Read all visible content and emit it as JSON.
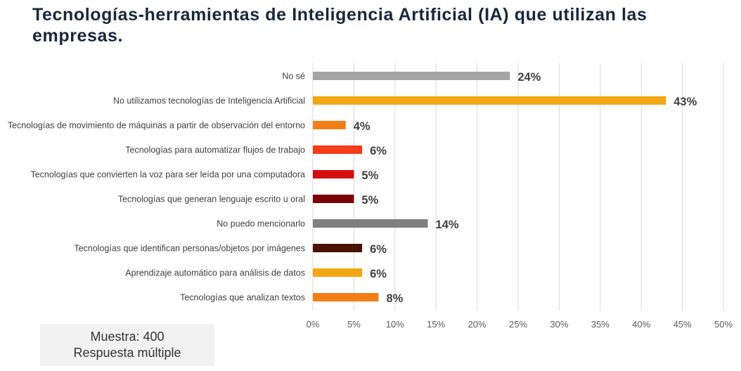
{
  "title": "Tecnologías-herramientas de Inteligencia Artificial (IA) que utilizan las empresas.",
  "note": {
    "line1": "Muestra: 400",
    "line2": "Respuesta múltiple"
  },
  "chart_data": {
    "type": "bar",
    "orientation": "horizontal",
    "categories": [
      "No sé",
      "No utilizamos tecnologías de Inteligencia Artificial",
      "Tecnologías de movimiento de máquinas a partir de observación del entorno",
      "Tecnologías para automatizar flujos de trabajo",
      "Tecnologías que convierten la voz para ser leída por una computadora",
      "Tecnologías que generan lenguaje escrito u oral",
      "No puedo mencionarlo",
      "Tecnologías que identifican personas/objetos por imágenes",
      "Aprendizaje automático para análisis de datos",
      "Tecnologías que analizan textos"
    ],
    "values": [
      24,
      43,
      4,
      6,
      5,
      5,
      14,
      6,
      6,
      8
    ],
    "value_labels": [
      "24%",
      "43%",
      "4%",
      "6%",
      "5%",
      "5%",
      "14%",
      "6%",
      "6%",
      "8%"
    ],
    "colors": [
      "#a5a5a5",
      "#f2a713",
      "#f07f16",
      "#f43c17",
      "#d40f0f",
      "#7a0404",
      "#7f7f7f",
      "#4a1204",
      "#f2a713",
      "#f07f16"
    ],
    "xlim": [
      0,
      50
    ],
    "xticks": [
      "0%",
      "5%",
      "10%",
      "15%",
      "20%",
      "25%",
      "30%",
      "35%",
      "40%",
      "45%",
      "50%"
    ],
    "xtick_values": [
      0,
      5,
      10,
      15,
      20,
      25,
      30,
      35,
      40,
      45,
      50
    ],
    "grid": true,
    "legend": "none"
  }
}
